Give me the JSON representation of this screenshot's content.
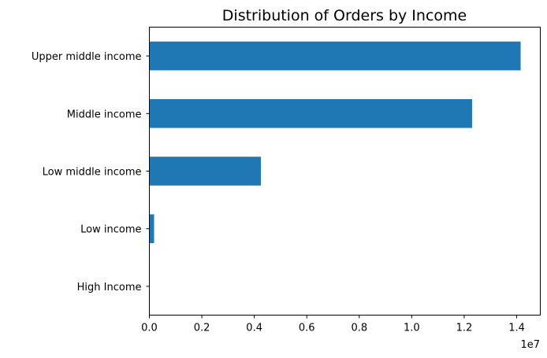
{
  "chart_data": {
    "type": "bar",
    "orientation": "horizontal",
    "title": "Distribution of Orders by Income",
    "xlabel": "",
    "ylabel": "",
    "categories": [
      "Upper middle income",
      "Middle income",
      "Low middle income",
      "Low income",
      "High Income"
    ],
    "values": [
      14150000,
      12300000,
      4250000,
      180000,
      0
    ],
    "xlim": [
      0,
      14900000
    ],
    "x_ticks": [
      0,
      2000000,
      4000000,
      6000000,
      8000000,
      10000000,
      12000000,
      14000000
    ],
    "x_tick_labels": [
      "0.0",
      "0.2",
      "0.4",
      "0.6",
      "0.8",
      "1.0",
      "1.2",
      "1.4"
    ],
    "x_offset_label": "1e7",
    "grid": false,
    "legend": "none",
    "bar_color": "#1f77b4"
  }
}
